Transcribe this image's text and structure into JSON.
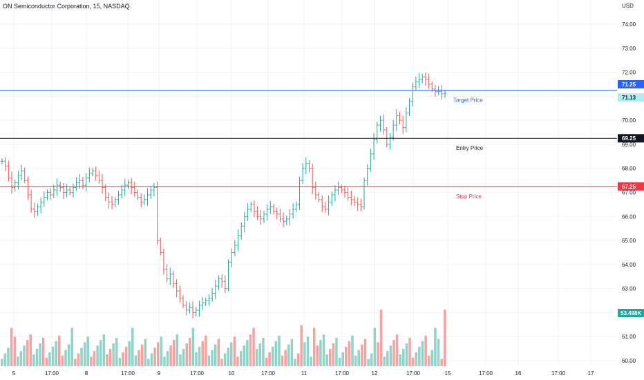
{
  "header": {
    "title": "ON Semiconductor Corporation, 15, NASDAQ",
    "currency": "USD"
  },
  "colors": {
    "up": "#26a69a",
    "down": "#ef5350",
    "vol_up": "#8fd3c9",
    "vol_down": "#f5a3a0",
    "grid": "#f0f3fa",
    "axis_text": "#131722",
    "target": "#2962ff",
    "entry": "#131722",
    "stop": "#f23645",
    "target_bg": "#2962ff",
    "last_bg": "#b2ebf2",
    "volume_bg": "#26a69a"
  },
  "price_axis": {
    "ticks": [
      "74.00",
      "73.00",
      "72.00",
      "71.00",
      "70.00",
      "69.00",
      "68.00",
      "67.00",
      "66.00",
      "65.00",
      "64.00",
      "63.00",
      "62.00",
      "61.00",
      "60.00"
    ]
  },
  "time_axis": {
    "labels": [
      "5",
      "17:00",
      "8",
      "17:00",
      "9",
      "17:00",
      "10",
      "17:00",
      "11",
      "17:00",
      "12",
      "17:00",
      "15",
      "17:00",
      "16",
      "17:00",
      "17"
    ]
  },
  "badges": {
    "target": "71.25",
    "last": "71.13",
    "entry": "69.25",
    "stop": "67.25",
    "volume": "53.498K"
  },
  "annotations": {
    "target": "Target Price",
    "entry": "Entry Price",
    "stop": "Stop Price"
  },
  "chart_data": {
    "type": "candlestick",
    "title": "ON Semiconductor Corporation, 15, NASDAQ",
    "y_unit": "USD",
    "ylim": [
      59.8,
      74.5
    ],
    "x_categories": [
      "5",
      "17:00",
      "8",
      "17:00",
      "9",
      "17:00",
      "10",
      "17:00",
      "11",
      "17:00",
      "12",
      "17:00",
      "15",
      "17:00",
      "16",
      "17:00",
      "17"
    ],
    "levels": [
      {
        "name": "Target Price",
        "value": 71.25
      },
      {
        "name": "Entry Price",
        "value": 69.25
      },
      {
        "name": "Stop Price",
        "value": 67.25
      }
    ],
    "last_price": 71.13,
    "last_volume": "53.498K",
    "close_path": [
      68.3,
      68.1,
      67.6,
      67.2,
      67.4,
      67.7,
      67.9,
      67.5,
      66.9,
      66.3,
      66.2,
      66.4,
      66.6,
      66.8,
      67.0,
      66.9,
      67.1,
      67.3,
      67.2,
      67.0,
      67.1,
      67.0,
      67.2,
      67.4,
      67.5,
      67.3,
      67.6,
      67.8,
      67.9,
      67.7,
      67.5,
      67.2,
      66.8,
      66.6,
      66.5,
      66.7,
      66.9,
      67.1,
      67.3,
      67.4,
      67.2,
      67.0,
      66.8,
      66.6,
      66.7,
      66.9,
      67.1,
      67.2,
      65.0,
      64.5,
      63.8,
      63.4,
      63.6,
      63.2,
      62.9,
      62.6,
      62.3,
      62.1,
      62.2,
      62.0,
      62.1,
      62.3,
      62.4,
      62.5,
      62.6,
      62.8,
      63.1,
      63.4,
      63.3,
      63.0,
      64.1,
      64.5,
      64.8,
      65.2,
      65.6,
      66.0,
      66.3,
      66.5,
      66.2,
      66.0,
      65.9,
      66.1,
      66.3,
      66.4,
      66.2,
      66.1,
      65.9,
      65.8,
      65.9,
      66.1,
      66.3,
      66.5,
      67.5,
      68.0,
      68.2,
      68.0,
      67.2,
      66.9,
      66.7,
      66.4,
      66.3,
      66.6,
      66.9,
      67.1,
      67.2,
      67.1,
      67.0,
      66.8,
      66.7,
      66.6,
      66.5,
      66.4,
      67.5,
      68.0,
      68.6,
      69.2,
      69.8,
      70.0,
      69.6,
      69.0,
      69.3,
      69.8,
      70.2,
      70.0,
      69.7,
      70.3,
      70.8,
      71.4,
      71.6,
      71.7,
      71.8,
      71.7,
      71.5,
      71.3,
      71.2,
      71.2,
      71.1,
      71.13
    ],
    "volume_bars": 140,
    "volume_spikes": [
      {
        "position": "11",
        "relative": 0.45
      },
      {
        "position": "12",
        "relative": 1.0
      },
      {
        "position": "15",
        "relative": 0.62
      }
    ]
  }
}
